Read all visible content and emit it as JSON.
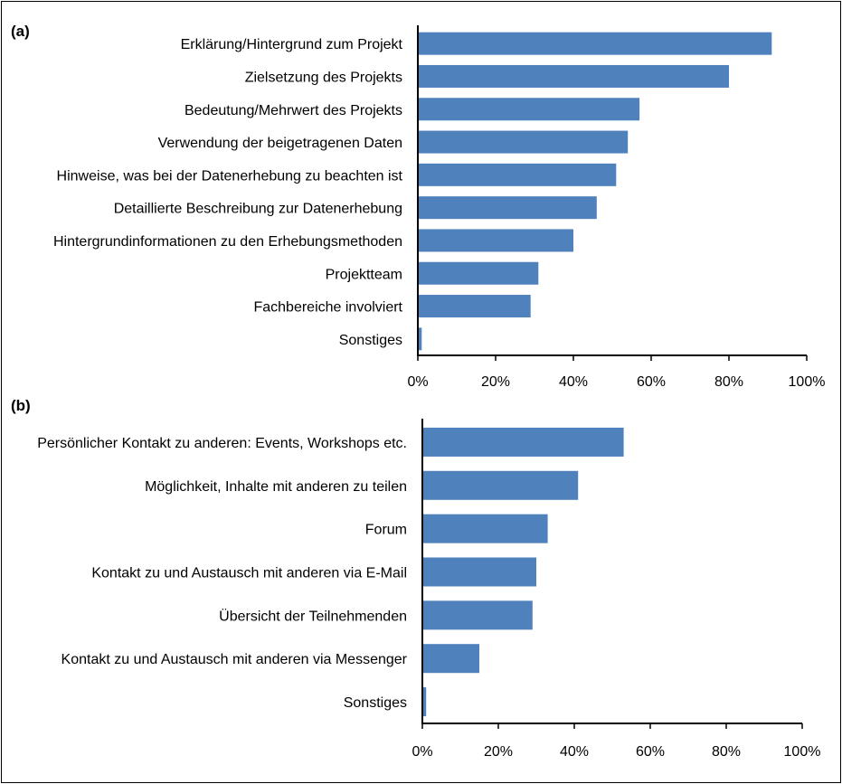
{
  "chart_data": [
    {
      "type": "bar",
      "orientation": "horizontal",
      "panel_label": "(a)",
      "title": "",
      "xlabel": "",
      "ylabel": "",
      "bar_color": "#4f81bd",
      "xlim": [
        0,
        100
      ],
      "x_ticks": [
        "0%",
        "20%",
        "40%",
        "60%",
        "80%",
        "100%"
      ],
      "categories": [
        "Erklärung/Hintergrund zum Projekt",
        "Zielsetzung des Projekts",
        "Bedeutung/Mehrwert des Projekts",
        "Verwendung der beigetragenen Daten",
        "Hinweise, was bei der Datenerhebung zu beachten ist",
        "Detaillierte Beschreibung zur Datenerhebung",
        "Hintergrundinformationen zu den Erhebungsmethoden",
        "Projektteam",
        "Fachbereiche involviert",
        "Sonstiges"
      ],
      "values": [
        91,
        80,
        57,
        54,
        51,
        46,
        40,
        31,
        29,
        1
      ]
    },
    {
      "type": "bar",
      "orientation": "horizontal",
      "panel_label": "(b)",
      "title": "",
      "xlabel": "",
      "ylabel": "",
      "bar_color": "#4f81bd",
      "xlim": [
        0,
        100
      ],
      "x_ticks": [
        "0%",
        "20%",
        "40%",
        "60%",
        "80%",
        "100%"
      ],
      "categories": [
        "Persönlicher Kontakt zu anderen: Events, Workshops etc.",
        "Möglichkeit, Inhalte mit anderen zu teilen",
        "Forum",
        "Kontakt zu und Austausch mit anderen via E-Mail",
        "Übersicht der Teilnehmenden",
        "Kontakt zu und Austausch mit anderen via Messenger",
        "Sonstiges"
      ],
      "values": [
        53,
        41,
        33,
        30,
        29,
        15,
        1
      ]
    }
  ]
}
